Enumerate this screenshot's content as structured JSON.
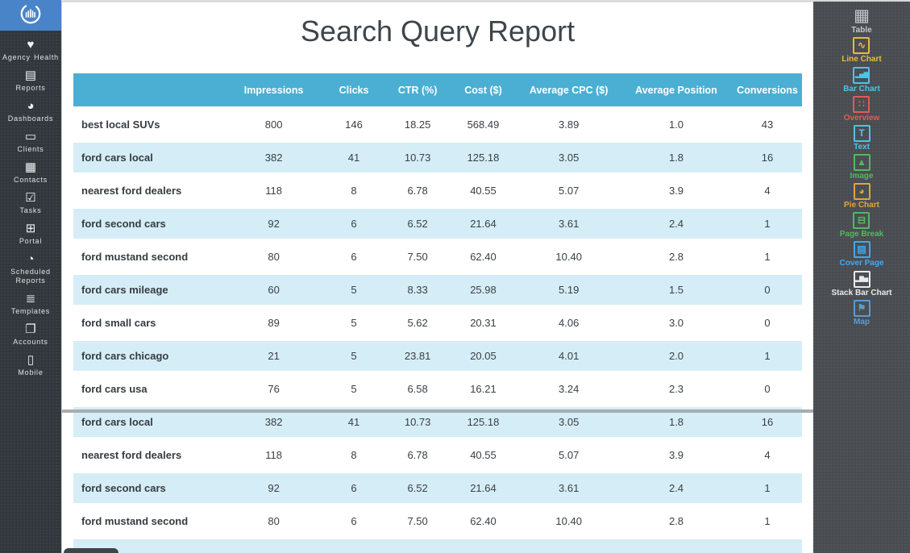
{
  "report": {
    "title": "Search Query Report"
  },
  "left_sidebar": {
    "logo": "chart-circle-logo",
    "items": [
      {
        "label": "Agency Health",
        "icon": "heart-icon"
      },
      {
        "label": "Reports",
        "icon": "report-icon"
      },
      {
        "label": "Dashboards",
        "icon": "pie-icon"
      },
      {
        "label": "Clients",
        "icon": "briefcase-icon"
      },
      {
        "label": "Contacts",
        "icon": "contacts-icon"
      },
      {
        "label": "Tasks",
        "icon": "tasks-icon"
      },
      {
        "label": "Portal",
        "icon": "portal-icon"
      },
      {
        "label": "Scheduled Reports",
        "icon": "clock-icon"
      },
      {
        "label": "Templates",
        "icon": "templates-icon"
      },
      {
        "label": "Accounts",
        "icon": "accounts-icon"
      },
      {
        "label": "Mobile",
        "icon": "mobile-icon"
      }
    ]
  },
  "right_sidebar": {
    "items": [
      {
        "label": "Table",
        "icon": "table-icon",
        "color": "#c3c8cc"
      },
      {
        "label": "Line Chart",
        "icon": "line-chart-icon",
        "color": "#e5bc3a"
      },
      {
        "label": "Bar Chart",
        "icon": "bar-chart-icon",
        "color": "#4ec3ea"
      },
      {
        "label": "Overview",
        "icon": "overview-icon",
        "color": "#e05d50"
      },
      {
        "label": "Text",
        "icon": "text-icon",
        "color": "#4ec3ea"
      },
      {
        "label": "Image",
        "icon": "image-icon",
        "color": "#55b85f"
      },
      {
        "label": "Pie Chart",
        "icon": "pie-chart-icon",
        "color": "#e5a43a"
      },
      {
        "label": "Page Break",
        "icon": "page-break-icon",
        "color": "#55b85f"
      },
      {
        "label": "Cover Page",
        "icon": "cover-page-icon",
        "color": "#3fa9f5"
      },
      {
        "label": "Stack Bar Chart",
        "icon": "stack-bar-chart-icon",
        "color": "#e8eaec"
      },
      {
        "label": "Map",
        "icon": "map-icon",
        "color": "#5b9bd5"
      }
    ]
  },
  "table": {
    "columns": [
      "",
      "Impressions",
      "Clicks",
      "CTR (%)",
      "Cost ($)",
      "Average CPC ($)",
      "Average Position",
      "Conversions"
    ],
    "rows": [
      [
        "best local SUVs",
        "800",
        "146",
        "18.25",
        "568.49",
        "3.89",
        "1.0",
        "43"
      ],
      [
        "ford cars local",
        "382",
        "41",
        "10.73",
        "125.18",
        "3.05",
        "1.8",
        "16"
      ],
      [
        "nearest ford dealers",
        "118",
        "8",
        "6.78",
        "40.55",
        "5.07",
        "3.9",
        "4"
      ],
      [
        "ford second cars",
        "92",
        "6",
        "6.52",
        "21.64",
        "3.61",
        "2.4",
        "1"
      ],
      [
        "ford mustand second",
        "80",
        "6",
        "7.50",
        "62.40",
        "10.40",
        "2.8",
        "1"
      ],
      [
        "ford cars mileage",
        "60",
        "5",
        "8.33",
        "25.98",
        "5.19",
        "1.5",
        "0"
      ],
      [
        "ford small cars",
        "89",
        "5",
        "5.62",
        "20.31",
        "4.06",
        "3.0",
        "0"
      ],
      [
        "ford cars chicago",
        "21",
        "5",
        "23.81",
        "20.05",
        "4.01",
        "2.0",
        "1"
      ],
      [
        "ford cars usa",
        "76",
        "5",
        "6.58",
        "16.21",
        "3.24",
        "2.3",
        "0"
      ],
      [
        "ford cars local",
        "382",
        "41",
        "10.73",
        "125.18",
        "3.05",
        "1.8",
        "16"
      ],
      [
        "nearest ford dealers",
        "118",
        "8",
        "6.78",
        "40.55",
        "5.07",
        "3.9",
        "4"
      ],
      [
        "ford second cars",
        "92",
        "6",
        "6.52",
        "21.64",
        "3.61",
        "2.4",
        "1"
      ],
      [
        "ford mustand second",
        "80",
        "6",
        "7.50",
        "62.40",
        "10.40",
        "2.8",
        "1"
      ],
      [
        "",
        "",
        "",
        "",
        "",
        "",
        "",
        ""
      ]
    ]
  },
  "colors": {
    "table_header_bg": "#4bafd3",
    "table_alt_row_bg": "#d5edf6",
    "logo_bg": "#4a84c8",
    "left_sidebar_bg": "#31373c",
    "right_sidebar_bg": "#494d51",
    "title_text": "#3e464c"
  }
}
